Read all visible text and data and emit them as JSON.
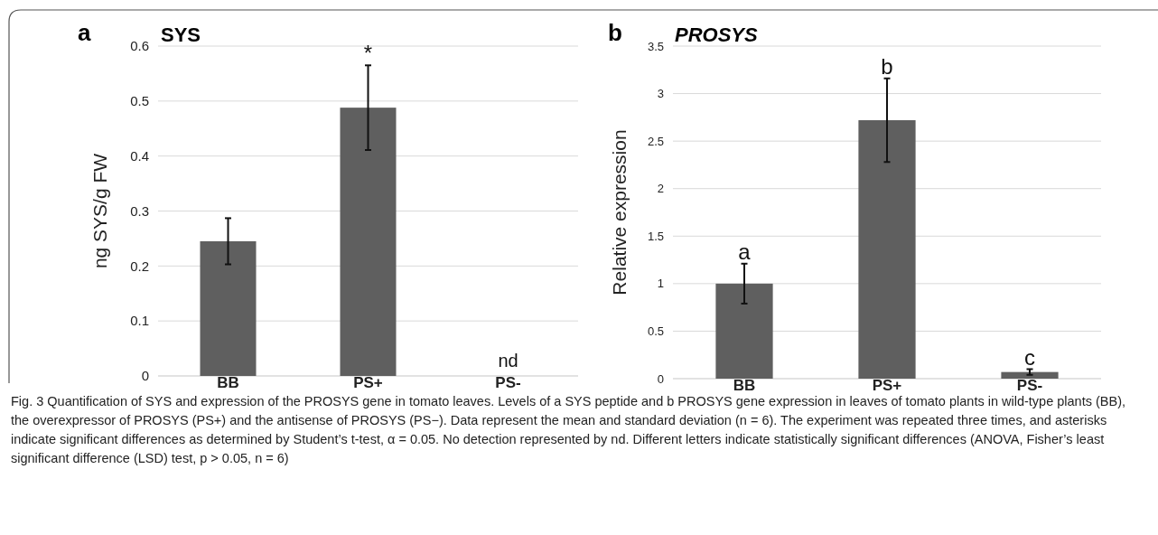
{
  "chart_data": [
    {
      "type": "bar",
      "title": "SYS",
      "ylabel": "ng SYS/g FW",
      "categories": [
        "BB",
        "PS+",
        "PS-"
      ],
      "values": [
        0.245,
        0.488,
        null
      ],
      "errors": [
        0.042,
        0.077,
        null
      ],
      "color": "#5f5f5f",
      "ylim": [
        0,
        0.6
      ],
      "yticks": [
        0,
        0.1,
        0.2,
        0.3,
        0.4,
        0.5,
        0.6
      ],
      "grid": "y",
      "annotations": [
        "a",
        {
          "text": "*",
          "x": "PS+",
          "y": 0.565
        },
        "nd",
        "Fig. 3  Quantification of SYS and expression of the PROSYS gene in tomato leaves. Levels of a SYS peptide and b PROSYS gene expression in leaves of tomato plants in wild-type plants (BB), the overexpressor of PROSYS (PS+) and the antisense of PROSYS (PS−). Data represent the mean and standard deviation (n = 6). The experiment was repeated three times, and asterisks indicate significant differences as determined by Student’s t-test, α = 0.05. No detection represented by nd. Different letters indicate statistically significant differences (ANOVA, Fisher’s least significant difference (LSD) test, p > 0.05, n = 6)"
      ]
    },
    {
      "type": "bar",
      "title": "PROSYS",
      "ylabel": "Relative expression",
      "categories": [
        "BB",
        "PS+",
        "PS-"
      ],
      "values": [
        1.0,
        2.72,
        0.07
      ],
      "errors": [
        0.21,
        0.44,
        0.03
      ],
      "color": "#5f5f5f",
      "ylim": [
        0,
        3.5
      ],
      "yticks": [
        0,
        0.5,
        1,
        1.5,
        2,
        2.5,
        3,
        3.5
      ],
      "grid": "y",
      "annotations": [
        "b",
        {
          "text": "a",
          "x": "BB",
          "y": 1.21
        },
        {
          "text": "b",
          "x": "PS+",
          "y": 3.16
        },
        {
          "text": "c",
          "x": "PS-",
          "y": 0.096
        }
      ]
    }
  ]
}
